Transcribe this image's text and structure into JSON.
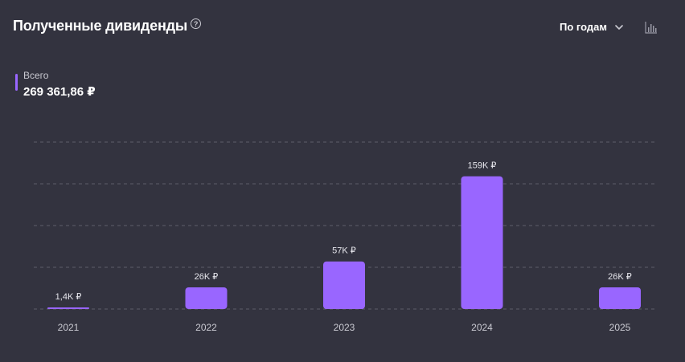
{
  "header": {
    "title": "Полученные дивиденды",
    "help_icon": "question-circle-icon",
    "period_select": "По годам",
    "chart_type_icon": "bar-chart-icon"
  },
  "summary": {
    "label": "Всего",
    "value": "269 361,86 ₽"
  },
  "colors": {
    "background": "#33333f",
    "bar": "#9966ff",
    "grid": "#5e5e6a"
  },
  "chart_data": {
    "type": "bar",
    "categories": [
      "2021",
      "2022",
      "2023",
      "2024",
      "2025"
    ],
    "values": [
      1400,
      26000,
      57000,
      159000,
      26000
    ],
    "data_labels": [
      "1,4K ₽",
      "26K ₽",
      "57K ₽",
      "159K ₽",
      "26K ₽"
    ],
    "ylim": [
      0,
      200000
    ],
    "grid": true
  }
}
